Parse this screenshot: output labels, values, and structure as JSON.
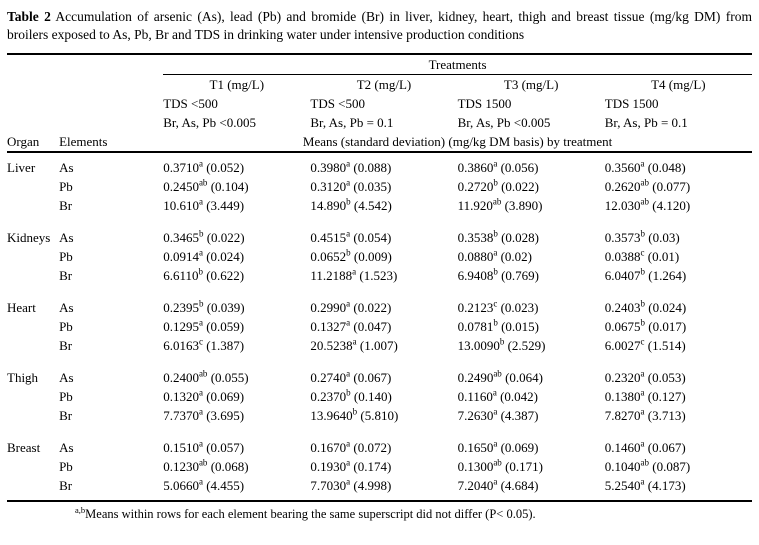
{
  "colors": {
    "background": "#ffffff",
    "text": "#000000",
    "rule": "#000000"
  },
  "caption": {
    "label": "Table 2",
    "text": "Accumulation of arsenic (As), lead (Pb) and bromide (Br) in liver, kidney, heart, thigh and breast tissue (mg/kg DM) from broilers exposed to As, Pb, Br and TDS in drinking water under intensive production conditions"
  },
  "header": {
    "treatments_label": "Treatments",
    "organ_label": "Organ",
    "elements_label": "Elements",
    "means_label": "Means (standard deviation) (mg/kg DM basis) by treatment",
    "treatments": [
      {
        "name": "T1 (mg/L)",
        "tds": "TDS <500",
        "dose": "Br, As, Pb <0.005"
      },
      {
        "name": "T2 (mg/L)",
        "tds": "TDS <500",
        "dose": "Br, As, Pb = 0.1"
      },
      {
        "name": "T3 (mg/L)",
        "tds": "TDS 1500",
        "dose": "Br, As, Pb <0.005"
      },
      {
        "name": "T4 (mg/L)",
        "tds": "TDS 1500",
        "dose": "Br, As, Pb = 0.1"
      }
    ]
  },
  "body": {
    "organs": [
      {
        "organ": "Liver",
        "rows": [
          {
            "element": "As",
            "cells": [
              {
                "mean": "0.3710",
                "sup": "a",
                "sd": "(0.052)"
              },
              {
                "mean": "0.3980",
                "sup": "a",
                "sd": "(0.088)"
              },
              {
                "mean": "0.3860",
                "sup": "a",
                "sd": "(0.056)"
              },
              {
                "mean": "0.3560",
                "sup": "a",
                "sd": "(0.048)"
              }
            ]
          },
          {
            "element": "Pb",
            "cells": [
              {
                "mean": "0.2450",
                "sup": "ab",
                "sd": "(0.104)"
              },
              {
                "mean": "0.3120",
                "sup": "a",
                "sd": "(0.035)"
              },
              {
                "mean": "0.2720",
                "sup": "b",
                "sd": "(0.022)"
              },
              {
                "mean": "0.2620",
                "sup": "ab",
                "sd": "(0.077)"
              }
            ]
          },
          {
            "element": "Br",
            "cells": [
              {
                "mean": "10.610",
                "sup": "a",
                "sd": "(3.449)"
              },
              {
                "mean": "14.890",
                "sup": "b",
                "sd": "(4.542)"
              },
              {
                "mean": "11.920",
                "sup": "ab",
                "sd": "(3.890)"
              },
              {
                "mean": "12.030",
                "sup": "ab",
                "sd": "(4.120)"
              }
            ]
          }
        ]
      },
      {
        "organ": "Kidneys",
        "rows": [
          {
            "element": "As",
            "cells": [
              {
                "mean": "0.3465",
                "sup": "b",
                "sd": "(0.022)"
              },
              {
                "mean": "0.4515",
                "sup": "a",
                "sd": "(0.054)"
              },
              {
                "mean": "0.3538",
                "sup": "b",
                "sd": "(0.028)"
              },
              {
                "mean": "0.3573",
                "sup": "b",
                "sd": "(0.03)"
              }
            ]
          },
          {
            "element": "Pb",
            "cells": [
              {
                "mean": "0.0914",
                "sup": "a",
                "sd": "(0.024)"
              },
              {
                "mean": "0.0652",
                "sup": "b",
                "sd": "(0.009)"
              },
              {
                "mean": "0.0880",
                "sup": "a",
                "sd": "(0.02)"
              },
              {
                "mean": "0.0388",
                "sup": "c",
                "sd": "(0.01)"
              }
            ]
          },
          {
            "element": "Br",
            "cells": [
              {
                "mean": "6.6110",
                "sup": "b",
                "sd": "(0.622)"
              },
              {
                "mean": "11.2188",
                "sup": "a",
                "sd": "(1.523)"
              },
              {
                "mean": "6.9408",
                "sup": "b",
                "sd": "(0.769)"
              },
              {
                "mean": "6.0407",
                "sup": "b",
                "sd": "(1.264)"
              }
            ]
          }
        ]
      },
      {
        "organ": "Heart",
        "rows": [
          {
            "element": "As",
            "cells": [
              {
                "mean": "0.2395",
                "sup": "b",
                "sd": "(0.039)"
              },
              {
                "mean": "0.2990",
                "sup": "a",
                "sd": "(0.022)"
              },
              {
                "mean": "0.2123",
                "sup": "c",
                "sd": "(0.023)"
              },
              {
                "mean": "0.2403",
                "sup": "b",
                "sd": "(0.024)"
              }
            ]
          },
          {
            "element": "Pb",
            "cells": [
              {
                "mean": "0.1295",
                "sup": "a",
                "sd": "(0.059)"
              },
              {
                "mean": "0.1327",
                "sup": "a",
                "sd": "(0.047)"
              },
              {
                "mean": "0.0781",
                "sup": "b",
                "sd": "(0.015)"
              },
              {
                "mean": "0.0675",
                "sup": "b",
                "sd": "(0.017)"
              }
            ]
          },
          {
            "element": "Br",
            "cells": [
              {
                "mean": "6.0163",
                "sup": "c",
                "sd": "(1.387)"
              },
              {
                "mean": "20.5238",
                "sup": "a",
                "sd": "(1.007)"
              },
              {
                "mean": "13.0090",
                "sup": "b",
                "sd": "(2.529)"
              },
              {
                "mean": "6.0027",
                "sup": "c",
                "sd": "(1.514)"
              }
            ]
          }
        ]
      },
      {
        "organ": "Thigh",
        "rows": [
          {
            "element": "As",
            "cells": [
              {
                "mean": "0.2400",
                "sup": "ab",
                "sd": "(0.055)"
              },
              {
                "mean": "0.2740",
                "sup": "a",
                "sd": "(0.067)"
              },
              {
                "mean": "0.2490",
                "sup": "ab",
                "sd": "(0.064)"
              },
              {
                "mean": "0.2320",
                "sup": "a",
                "sd": "(0.053)"
              }
            ]
          },
          {
            "element": "Pb",
            "cells": [
              {
                "mean": "0.1320",
                "sup": "a",
                "sd": "(0.069)"
              },
              {
                "mean": "0.2370",
                "sup": "b",
                "sd": "(0.140)"
              },
              {
                "mean": "0.1160",
                "sup": "a",
                "sd": "(0.042)"
              },
              {
                "mean": "0.1380",
                "sup": "a",
                "sd": "(0.127)"
              }
            ]
          },
          {
            "element": "Br",
            "cells": [
              {
                "mean": "7.7370",
                "sup": "a",
                "sd": "(3.695)"
              },
              {
                "mean": "13.9640",
                "sup": "b",
                "sd": "(5.810)"
              },
              {
                "mean": "7.2630",
                "sup": "a",
                "sd": "(4.387)"
              },
              {
                "mean": "7.8270",
                "sup": "a",
                "sd": "(3.713)"
              }
            ]
          }
        ]
      },
      {
        "organ": "Breast",
        "rows": [
          {
            "element": "As",
            "cells": [
              {
                "mean": "0.1510",
                "sup": "a",
                "sd": "(0.057)"
              },
              {
                "mean": "0.1670",
                "sup": "a",
                "sd": "(0.072)"
              },
              {
                "mean": "0.1650",
                "sup": "a",
                "sd": "(0.069)"
              },
              {
                "mean": "0.1460",
                "sup": "a",
                "sd": "(0.067)"
              }
            ]
          },
          {
            "element": "Pb",
            "cells": [
              {
                "mean": "0.1230",
                "sup": "ab",
                "sd": "(0.068)"
              },
              {
                "mean": "0.1930",
                "sup": "a",
                "sd": "(0.174)"
              },
              {
                "mean": "0.1300",
                "sup": "ab",
                "sd": "(0.171)"
              },
              {
                "mean": "0.1040",
                "sup": "ab",
                "sd": "(0.087)"
              }
            ]
          },
          {
            "element": "Br",
            "cells": [
              {
                "mean": "5.0660",
                "sup": "a",
                "sd": "(4.455)"
              },
              {
                "mean": "7.7030",
                "sup": "a",
                "sd": "(4.998)"
              },
              {
                "mean": "7.2040",
                "sup": "a",
                "sd": "(4.684)"
              },
              {
                "mean": "5.2540",
                "sup": "a",
                "sd": "(4.173)"
              }
            ]
          }
        ]
      }
    ]
  },
  "footnote": {
    "sup": "a,b",
    "text": "Means within rows for each element bearing the same superscript did not differ (P< 0.05)."
  }
}
